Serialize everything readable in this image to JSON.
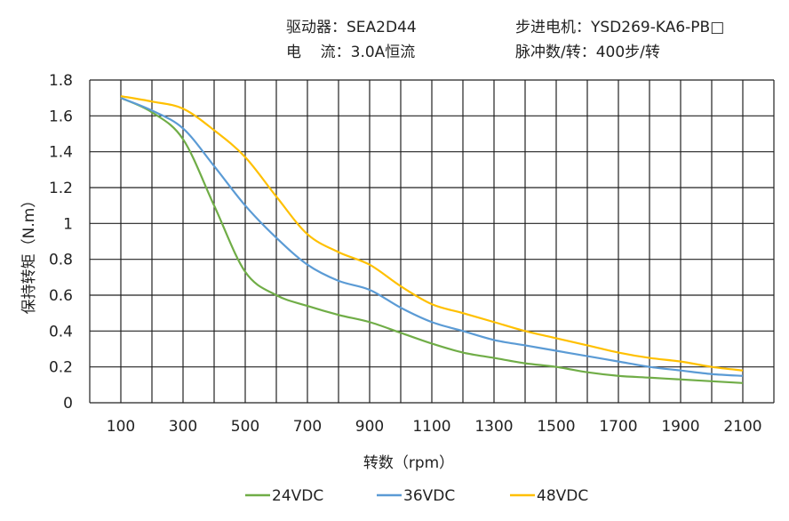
{
  "header": {
    "driver_label": "驱动器：",
    "driver_value": "SEA2D44",
    "motor_label": "步进电机：",
    "motor_value": "YSD269-KA6-PB□",
    "current_label": "电    流：",
    "current_value": "3.0A恒流",
    "pulse_label": "脉冲数/转：",
    "pulse_value": "400步/转"
  },
  "chart_data": {
    "type": "line",
    "title": "",
    "xlabel": "转数（rpm）",
    "ylabel": "保持转矩（N.m）",
    "xlim": [
      0,
      2200
    ],
    "ylim": [
      0,
      1.8
    ],
    "grid": true,
    "legend_position": "bottom",
    "x_ticks": [
      "100",
      "300",
      "500",
      "700",
      "900",
      "1100",
      "1300",
      "1500",
      "1700",
      "1900",
      "2100"
    ],
    "y_ticks": [
      "0",
      "0.2",
      "0.4",
      "0.6",
      "0.8",
      "1",
      "1.2",
      "1.4",
      "1.6",
      "1.8"
    ],
    "x": [
      100,
      200,
      300,
      400,
      500,
      600,
      700,
      800,
      900,
      1000,
      1100,
      1200,
      1300,
      1400,
      1500,
      1600,
      1700,
      1800,
      1900,
      2000,
      2100
    ],
    "series": [
      {
        "name": "24VDC",
        "color": "#70ad47",
        "values": [
          1.7,
          1.62,
          1.47,
          1.1,
          0.73,
          0.6,
          0.54,
          0.49,
          0.45,
          0.39,
          0.33,
          0.28,
          0.25,
          0.22,
          0.2,
          0.17,
          0.15,
          0.14,
          0.13,
          0.12,
          0.11
        ]
      },
      {
        "name": "36VDC",
        "color": "#5b9bd5",
        "values": [
          1.7,
          1.63,
          1.53,
          1.32,
          1.1,
          0.92,
          0.77,
          0.68,
          0.63,
          0.53,
          0.45,
          0.4,
          0.35,
          0.32,
          0.29,
          0.26,
          0.23,
          0.2,
          0.18,
          0.16,
          0.15
        ]
      },
      {
        "name": "48VDC",
        "color": "#ffc000",
        "values": [
          1.71,
          1.68,
          1.64,
          1.52,
          1.37,
          1.15,
          0.94,
          0.84,
          0.77,
          0.65,
          0.55,
          0.5,
          0.45,
          0.4,
          0.36,
          0.32,
          0.28,
          0.25,
          0.23,
          0.2,
          0.18
        ]
      }
    ]
  }
}
